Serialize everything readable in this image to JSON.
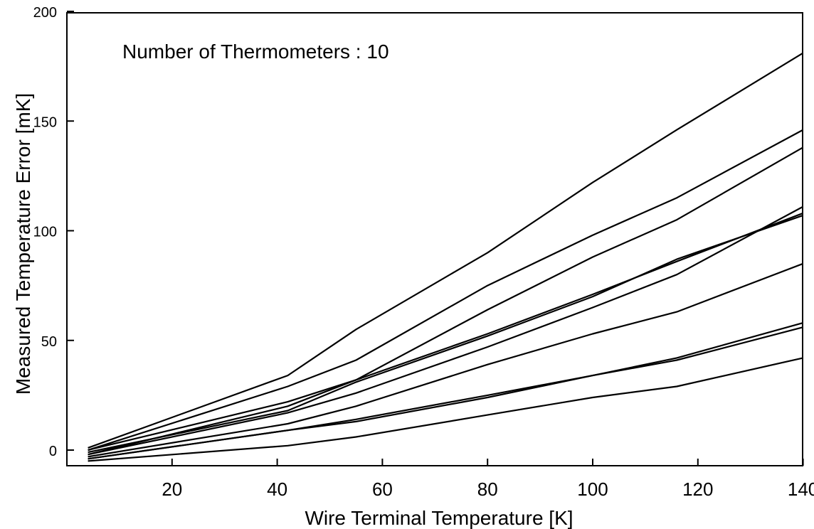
{
  "chart_data": {
    "type": "line",
    "title": "",
    "annotation": "Number of Thermometers : 10",
    "xlabel": "Wire Terminal Temperature [K]",
    "ylabel": "Measured Temperature Error [mK]",
    "xlim": [
      0,
      140
    ],
    "ylim": [
      -8,
      200
    ],
    "xticks": [
      20,
      40,
      60,
      80,
      100,
      120,
      140
    ],
    "yticks": [
      0,
      50,
      100,
      150,
      200
    ],
    "grid": false,
    "line_color": "#000000",
    "series": [
      {
        "x": [
          4,
          42,
          55,
          80,
          100,
          116,
          140
        ],
        "values": [
          1,
          34,
          55,
          90,
          122,
          146,
          181
        ]
      },
      {
        "x": [
          4,
          42,
          55,
          80,
          100,
          116,
          140
        ],
        "values": [
          0,
          29,
          41,
          75,
          98,
          115,
          146
        ]
      },
      {
        "x": [
          4,
          42,
          55,
          80,
          100,
          116,
          140
        ],
        "values": [
          0,
          22,
          32,
          64,
          88,
          105,
          138
        ]
      },
      {
        "x": [
          4,
          42,
          55,
          80,
          100,
          116,
          140
        ],
        "values": [
          -1,
          18,
          31,
          52,
          70,
          87,
          107
        ]
      },
      {
        "x": [
          4,
          42,
          55,
          80,
          100,
          116,
          140
        ],
        "values": [
          -2,
          20,
          32,
          53,
          71,
          86,
          108
        ]
      },
      {
        "x": [
          4,
          42,
          55,
          80,
          100,
          116,
          140
        ],
        "values": [
          -2,
          17,
          26,
          47,
          65,
          80,
          111
        ]
      },
      {
        "x": [
          4,
          42,
          55,
          80,
          100,
          116,
          140
        ],
        "values": [
          -3,
          12,
          20,
          39,
          53,
          63,
          85
        ]
      },
      {
        "x": [
          4,
          42,
          55,
          80,
          100,
          116,
          140
        ],
        "values": [
          -4,
          9,
          13,
          24,
          34,
          41,
          56
        ]
      },
      {
        "x": [
          4,
          42,
          55,
          80,
          100,
          116,
          140
        ],
        "values": [
          -4,
          9,
          14,
          25,
          34,
          42,
          58
        ]
      },
      {
        "x": [
          4,
          42,
          55,
          80,
          100,
          116,
          140
        ],
        "values": [
          -5,
          2,
          6,
          16,
          24,
          29,
          42
        ]
      }
    ]
  }
}
